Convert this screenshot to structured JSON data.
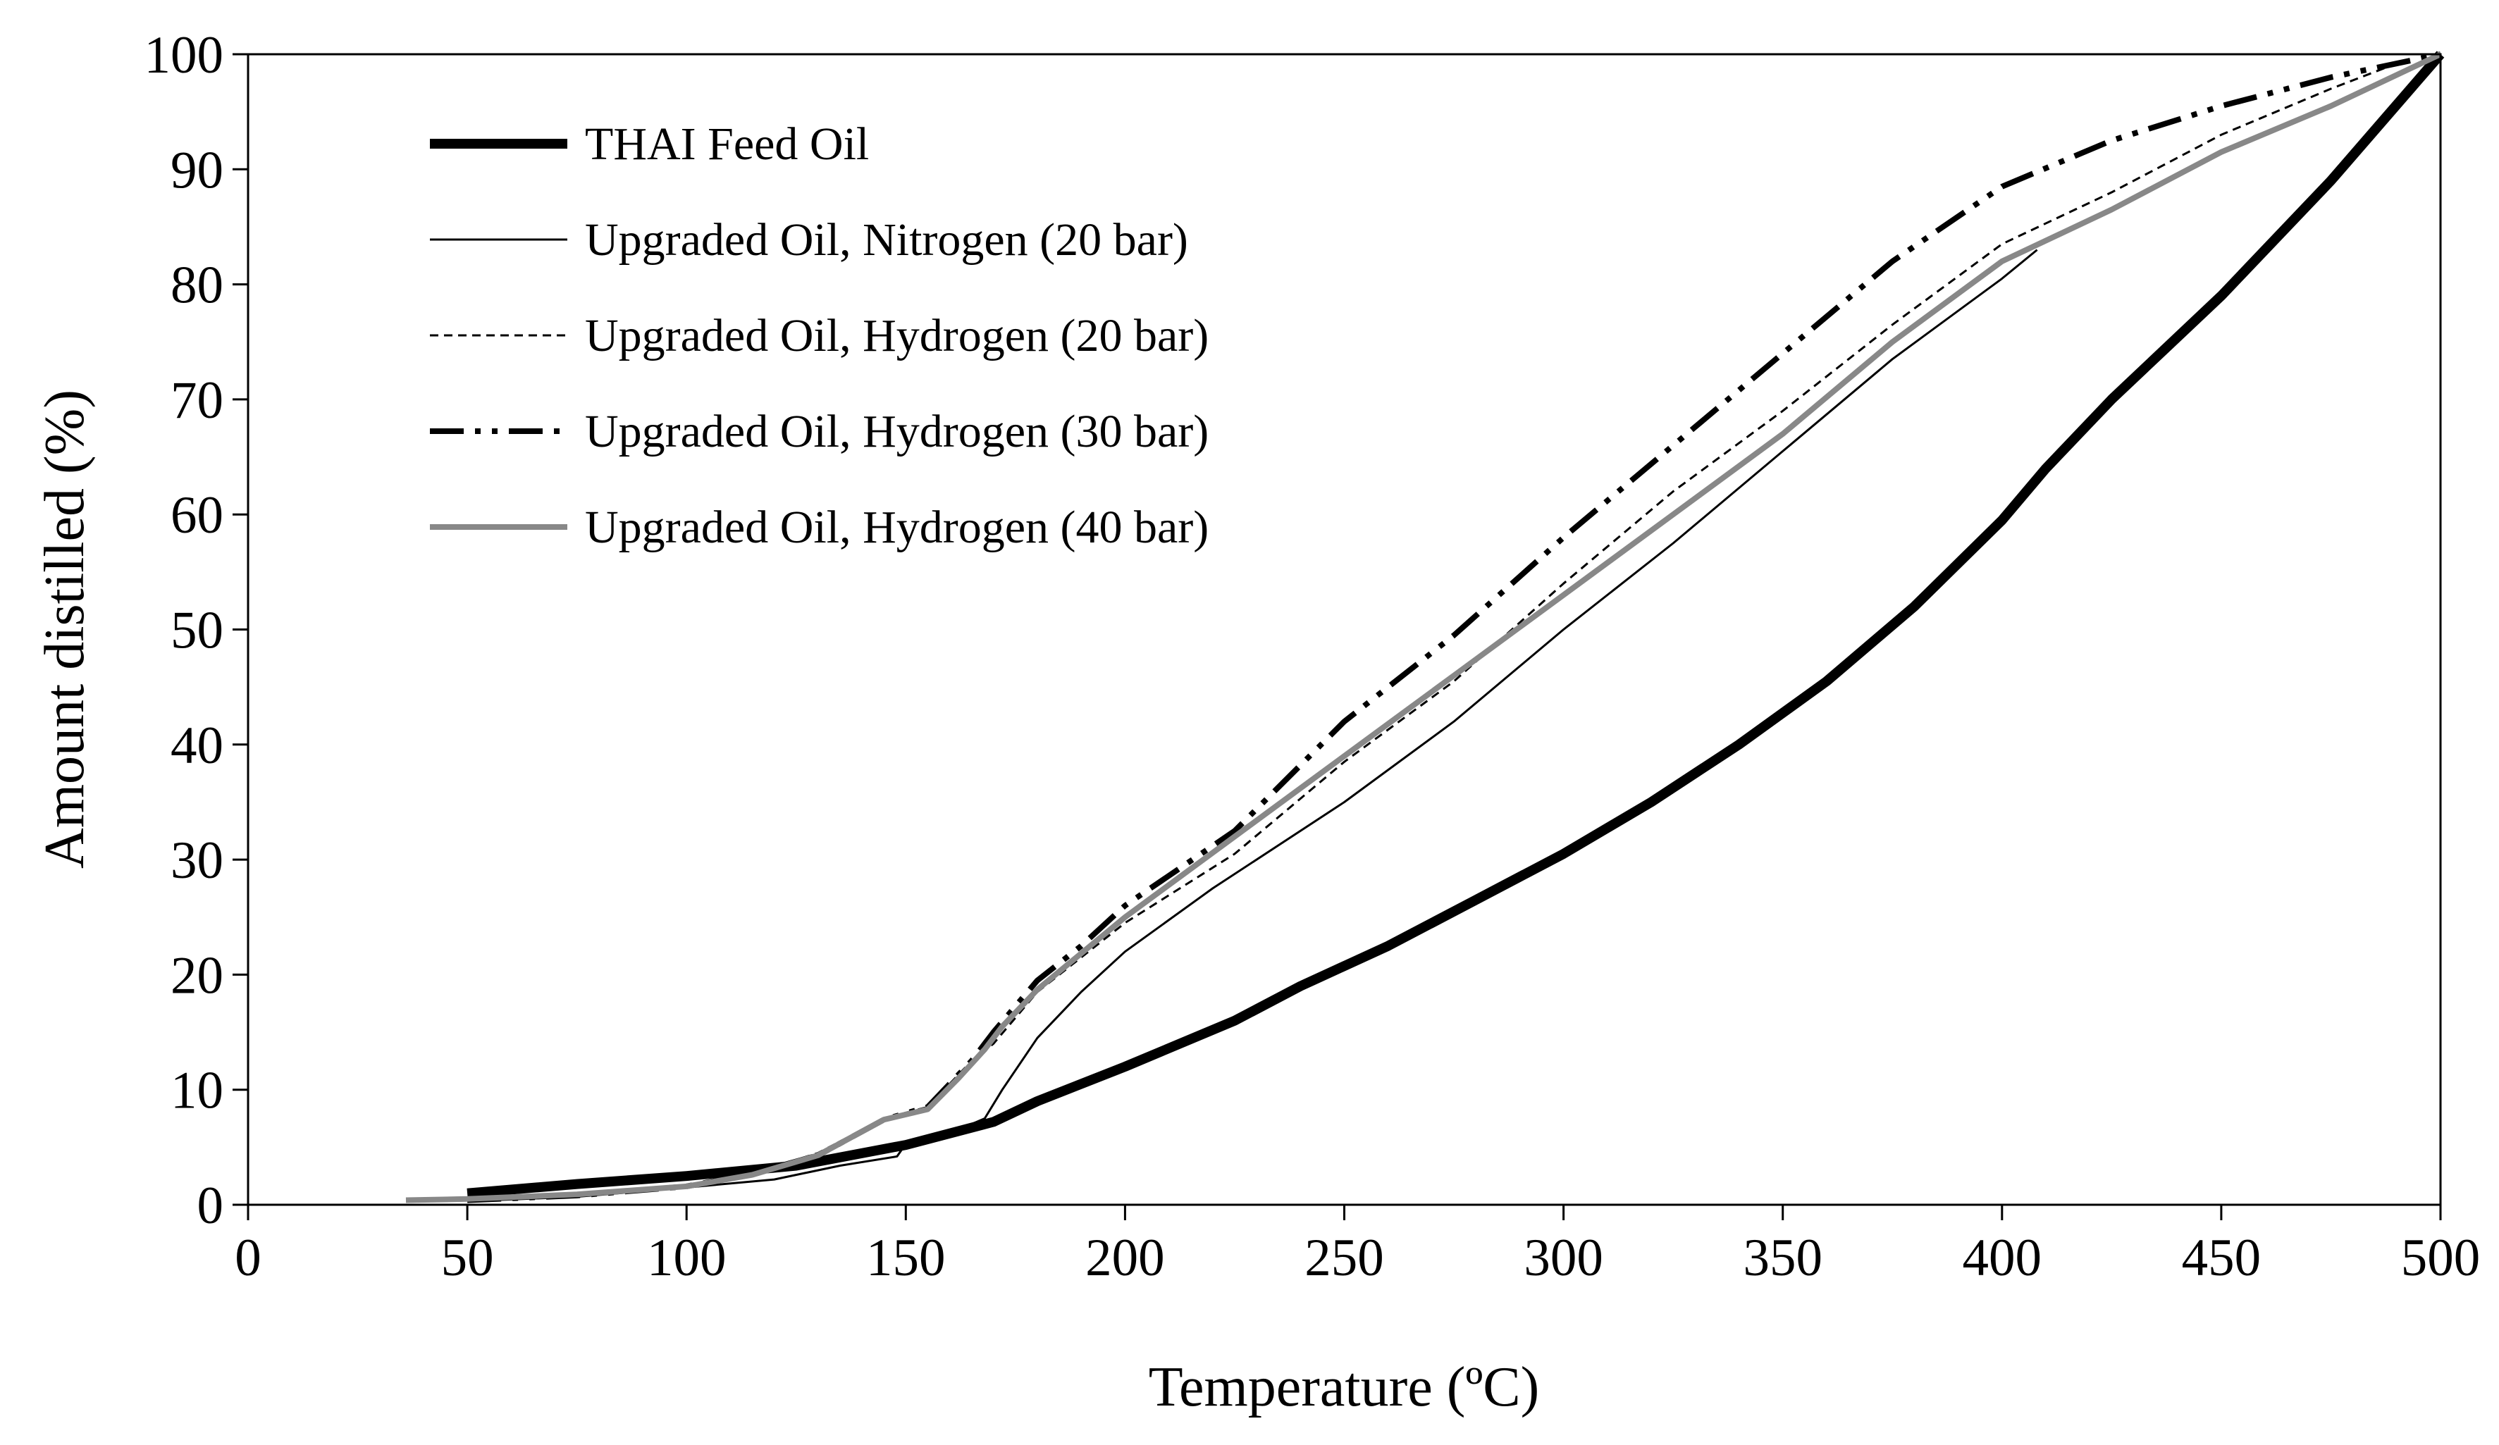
{
  "chart_data": {
    "type": "line",
    "title": "",
    "xlabel": "Temperature (ºC)",
    "ylabel": "Amount distilled (%)",
    "xlim": [
      0,
      500
    ],
    "ylim": [
      0,
      100
    ],
    "x_ticks": [
      "0",
      "50",
      "100",
      "150",
      "200",
      "250",
      "300",
      "350",
      "400",
      "450",
      "500"
    ],
    "y_ticks": [
      "0",
      "10",
      "20",
      "30",
      "40",
      "50",
      "60",
      "70",
      "80",
      "90",
      "100"
    ],
    "grid": false,
    "legend_position": "top-left",
    "series": [
      {
        "name": "THAI Feed Oil",
        "style": "thick-solid",
        "color": "#000000",
        "points": [
          [
            50,
            1
          ],
          [
            75,
            1.8
          ],
          [
            100,
            2.5
          ],
          [
            125,
            3.4
          ],
          [
            150,
            5.2
          ],
          [
            170,
            7.2
          ],
          [
            180,
            9
          ],
          [
            200,
            12
          ],
          [
            225,
            16
          ],
          [
            240,
            19
          ],
          [
            260,
            22.5
          ],
          [
            280,
            26.5
          ],
          [
            300,
            30.5
          ],
          [
            320,
            35
          ],
          [
            340,
            40
          ],
          [
            360,
            45.5
          ],
          [
            380,
            52
          ],
          [
            400,
            59.5
          ],
          [
            410,
            64
          ],
          [
            425,
            70
          ],
          [
            450,
            79
          ],
          [
            475,
            89
          ],
          [
            500,
            100
          ]
        ]
      },
      {
        "name": "Upgraded Oil, Nitrogen (20 bar)",
        "style": "thin-solid",
        "color": "#000000",
        "points": [
          [
            50,
            0.3
          ],
          [
            75,
            0.7
          ],
          [
            100,
            1.5
          ],
          [
            120,
            2.2
          ],
          [
            135,
            3.4
          ],
          [
            148,
            4.2
          ],
          [
            150,
            5.3
          ],
          [
            160,
            6.2
          ],
          [
            168,
            7.5
          ],
          [
            172,
            10
          ],
          [
            180,
            14.5
          ],
          [
            190,
            18.5
          ],
          [
            200,
            22
          ],
          [
            220,
            27.5
          ],
          [
            250,
            35
          ],
          [
            275,
            42
          ],
          [
            300,
            50
          ],
          [
            325,
            57.5
          ],
          [
            350,
            65.5
          ],
          [
            375,
            73.5
          ],
          [
            400,
            80.5
          ],
          [
            408,
            83
          ]
        ]
      },
      {
        "name": "Upgraded Oil, Hydrogen (20 bar)",
        "style": "dashed",
        "color": "#000000",
        "points": [
          [
            50,
            0.4
          ],
          [
            75,
            0.9
          ],
          [
            100,
            1.6
          ],
          [
            115,
            2.7
          ],
          [
            130,
            4.5
          ],
          [
            145,
            7.5
          ],
          [
            155,
            8.5
          ],
          [
            165,
            12.5
          ],
          [
            170,
            14
          ],
          [
            180,
            18.5
          ],
          [
            190,
            21.5
          ],
          [
            200,
            24.5
          ],
          [
            225,
            30.5
          ],
          [
            250,
            38.5
          ],
          [
            275,
            45.5
          ],
          [
            300,
            54
          ],
          [
            325,
            62
          ],
          [
            350,
            69
          ],
          [
            375,
            76.5
          ],
          [
            400,
            83.5
          ],
          [
            425,
            88
          ],
          [
            450,
            93
          ],
          [
            475,
            97
          ],
          [
            490,
            99.2
          ]
        ]
      },
      {
        "name": "Upgraded Oil, Hydrogen (30 bar)",
        "style": "dash-dot-dot",
        "color": "#000000",
        "points": [
          [
            50,
            0.4
          ],
          [
            75,
            0.8
          ],
          [
            100,
            1.6
          ],
          [
            115,
            2.7
          ],
          [
            130,
            4.3
          ],
          [
            145,
            7.4
          ],
          [
            155,
            8.5
          ],
          [
            165,
            12.5
          ],
          [
            170,
            15
          ],
          [
            180,
            19.5
          ],
          [
            190,
            22.5
          ],
          [
            200,
            26
          ],
          [
            225,
            32.5
          ],
          [
            250,
            42
          ],
          [
            275,
            49.5
          ],
          [
            300,
            58
          ],
          [
            325,
            66
          ],
          [
            350,
            74
          ],
          [
            375,
            82
          ],
          [
            400,
            88.5
          ],
          [
            425,
            92.5
          ],
          [
            450,
            95.5
          ],
          [
            475,
            98
          ],
          [
            500,
            100
          ]
        ]
      },
      {
        "name": "Upgraded Oil, Hydrogen (40 bar)",
        "style": "gray-solid",
        "color": "#888888",
        "points": [
          [
            36,
            0.4
          ],
          [
            50,
            0.5
          ],
          [
            75,
            0.9
          ],
          [
            100,
            1.6
          ],
          [
            115,
            2.6
          ],
          [
            130,
            4.3
          ],
          [
            145,
            7.4
          ],
          [
            155,
            8.3
          ],
          [
            162,
            11
          ],
          [
            168,
            13.5
          ],
          [
            172,
            15.5
          ],
          [
            180,
            18.7
          ],
          [
            200,
            25
          ],
          [
            225,
            32
          ],
          [
            250,
            39
          ],
          [
            275,
            46
          ],
          [
            300,
            53
          ],
          [
            325,
            60
          ],
          [
            350,
            67
          ],
          [
            375,
            75
          ],
          [
            400,
            82
          ],
          [
            425,
            86.5
          ],
          [
            450,
            91.5
          ],
          [
            475,
            95.5
          ],
          [
            500,
            100
          ]
        ]
      }
    ]
  }
}
